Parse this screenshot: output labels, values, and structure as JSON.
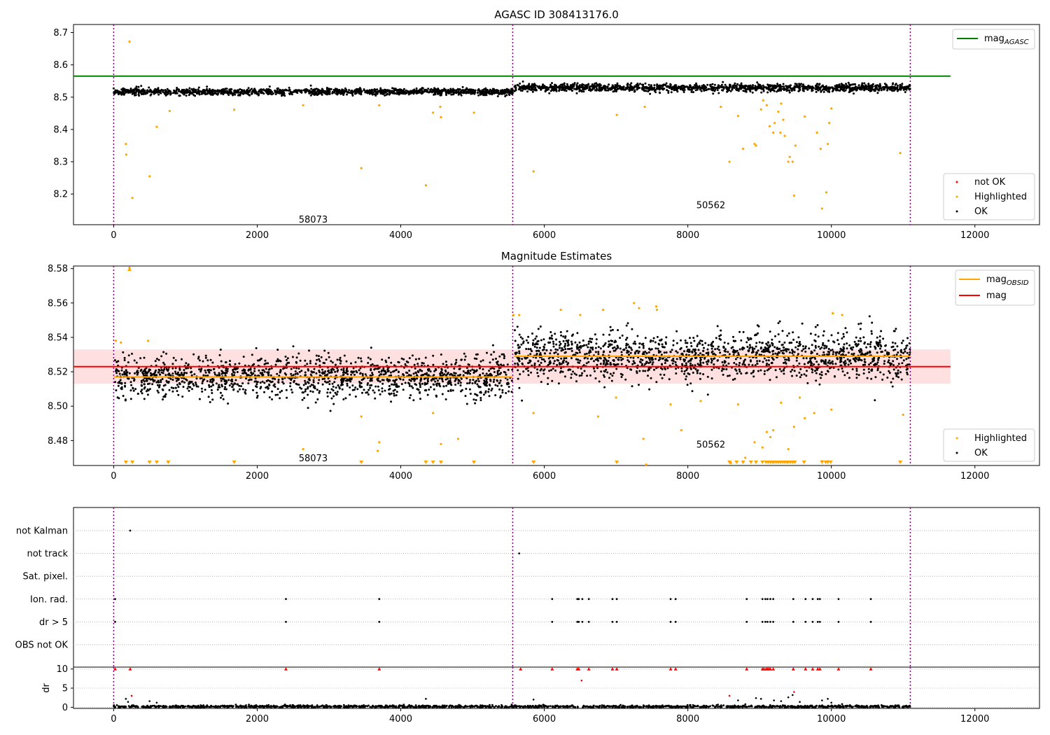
{
  "chart_data": [
    {
      "type": "scatter",
      "title": "AGASC ID 308413176.0",
      "xlim": [
        -560,
        12900
      ],
      "ylim": [
        8.105,
        8.725
      ],
      "x_ticks": [
        0,
        2000,
        4000,
        6000,
        8000,
        10000,
        12000
      ],
      "y_ticks": [
        8.2,
        8.3,
        8.4,
        8.5,
        8.6,
        8.7
      ],
      "reference_lines": [
        {
          "name": "mag_AGASC",
          "y": 8.565,
          "x_range": [
            -560,
            11660
          ],
          "color": "#008000"
        }
      ],
      "obs_boundaries": [
        0,
        5560,
        11100
      ],
      "obs_labels": [
        {
          "text": "58073",
          "x": 2780,
          "y": 8.12
        },
        {
          "text": "50562",
          "x": 8320,
          "y": 8.165
        }
      ],
      "ok_bands": [
        {
          "x": [
            0,
            5560
          ],
          "center": 8.517,
          "spread": 0.012
        },
        {
          "x": [
            5580,
            11100
          ],
          "center": 8.529,
          "spread": 0.014
        }
      ],
      "highlighted_points": [
        {
          "x": 220,
          "y": 8.672
        },
        {
          "x": 170,
          "y": 8.355
        },
        {
          "x": 175,
          "y": 8.322
        },
        {
          "x": 500,
          "y": 8.255
        },
        {
          "x": 260,
          "y": 8.188
        },
        {
          "x": 600,
          "y": 8.408
        },
        {
          "x": 780,
          "y": 8.457
        },
        {
          "x": 1680,
          "y": 8.461
        },
        {
          "x": 2640,
          "y": 8.475
        },
        {
          "x": 3450,
          "y": 8.28
        },
        {
          "x": 3700,
          "y": 8.475
        },
        {
          "x": 4350,
          "y": 8.227
        },
        {
          "x": 4450,
          "y": 8.452
        },
        {
          "x": 4560,
          "y": 8.438
        },
        {
          "x": 4550,
          "y": 8.47
        },
        {
          "x": 5020,
          "y": 8.452
        },
        {
          "x": 5850,
          "y": 8.27
        },
        {
          "x": 7010,
          "y": 8.445
        },
        {
          "x": 7400,
          "y": 8.47
        },
        {
          "x": 8580,
          "y": 8.3
        },
        {
          "x": 8700,
          "y": 8.442
        },
        {
          "x": 8770,
          "y": 8.34
        },
        {
          "x": 8930,
          "y": 8.355
        },
        {
          "x": 8950,
          "y": 8.35
        },
        {
          "x": 9020,
          "y": 8.462
        },
        {
          "x": 9100,
          "y": 8.475
        },
        {
          "x": 9140,
          "y": 8.41
        },
        {
          "x": 9190,
          "y": 8.39
        },
        {
          "x": 9210,
          "y": 8.42
        },
        {
          "x": 9260,
          "y": 8.455
        },
        {
          "x": 9290,
          "y": 8.39
        },
        {
          "x": 9330,
          "y": 8.43
        },
        {
          "x": 9350,
          "y": 8.38
        },
        {
          "x": 9400,
          "y": 8.3
        },
        {
          "x": 9420,
          "y": 8.315
        },
        {
          "x": 9460,
          "y": 8.3
        },
        {
          "x": 9480,
          "y": 8.195
        },
        {
          "x": 9500,
          "y": 8.35
        },
        {
          "x": 9630,
          "y": 8.44
        },
        {
          "x": 9800,
          "y": 8.39
        },
        {
          "x": 9850,
          "y": 8.34
        },
        {
          "x": 9870,
          "y": 8.155
        },
        {
          "x": 9930,
          "y": 8.205
        },
        {
          "x": 9950,
          "y": 8.355
        },
        {
          "x": 9970,
          "y": 8.42
        },
        {
          "x": 10000,
          "y": 8.465
        },
        {
          "x": 10960,
          "y": 8.327
        },
        {
          "x": 9050,
          "y": 8.49
        },
        {
          "x": 9300,
          "y": 8.48
        },
        {
          "x": 8460,
          "y": 8.47
        }
      ],
      "legend": [
        "mag_AGASC",
        "not OK",
        "Highlighted",
        "OK"
      ]
    },
    {
      "type": "scatter",
      "title": "Magnitude Estimates",
      "xlim": [
        -560,
        12900
      ],
      "ylim": [
        8.4655,
        8.5815
      ],
      "x_ticks": [
        0,
        2000,
        4000,
        6000,
        8000,
        10000,
        12000
      ],
      "y_ticks": [
        8.48,
        8.5,
        8.52,
        8.54,
        8.56,
        8.58
      ],
      "obs_boundaries": [
        0,
        5560,
        11100
      ],
      "obs_labels": [
        {
          "text": "58073",
          "x": 2780,
          "y": 8.4695
        },
        {
          "text": "50562",
          "x": 8320,
          "y": 8.4775
        }
      ],
      "mag": {
        "y": 8.523,
        "band": [
          8.513,
          8.533
        ],
        "x_range": [
          -560,
          11660
        ],
        "color": "#ff0000"
      },
      "mag_obsid": [
        {
          "x": [
            0,
            5560
          ],
          "y": 8.517
        },
        {
          "x": [
            5580,
            11100
          ],
          "y": 8.529
        }
      ],
      "ok_bands": [
        {
          "x": [
            0,
            5560
          ],
          "center": 8.517,
          "spread": 0.012
        },
        {
          "x": [
            5580,
            11100
          ],
          "center": 8.529,
          "spread": 0.014
        }
      ],
      "highlighted_points": [
        {
          "x": 220,
          "y": 8.5805
        },
        {
          "x": 30,
          "y": 8.538
        },
        {
          "x": 100,
          "y": 8.537
        },
        {
          "x": 480,
          "y": 8.538
        },
        {
          "x": 2640,
          "y": 8.475
        },
        {
          "x": 3450,
          "y": 8.494
        },
        {
          "x": 3700,
          "y": 8.479
        },
        {
          "x": 3680,
          "y": 8.474
        },
        {
          "x": 4560,
          "y": 8.478
        },
        {
          "x": 4800,
          "y": 8.481
        },
        {
          "x": 4450,
          "y": 8.496
        },
        {
          "x": 5850,
          "y": 8.496
        },
        {
          "x": 5570,
          "y": 8.553
        },
        {
          "x": 5650,
          "y": 8.553
        },
        {
          "x": 6230,
          "y": 8.556
        },
        {
          "x": 6500,
          "y": 8.553
        },
        {
          "x": 6820,
          "y": 8.556
        },
        {
          "x": 7250,
          "y": 8.56
        },
        {
          "x": 7320,
          "y": 8.557
        },
        {
          "x": 7560,
          "y": 8.558
        },
        {
          "x": 7570,
          "y": 8.556
        },
        {
          "x": 6750,
          "y": 8.494
        },
        {
          "x": 7000,
          "y": 8.505
        },
        {
          "x": 7380,
          "y": 8.481
        },
        {
          "x": 7420,
          "y": 8.466
        },
        {
          "x": 7760,
          "y": 8.501
        },
        {
          "x": 7910,
          "y": 8.486
        },
        {
          "x": 8180,
          "y": 8.503
        },
        {
          "x": 8600,
          "y": 8.467
        },
        {
          "x": 8700,
          "y": 8.501
        },
        {
          "x": 8800,
          "y": 8.47
        },
        {
          "x": 8930,
          "y": 8.479
        },
        {
          "x": 9040,
          "y": 8.476
        },
        {
          "x": 9100,
          "y": 8.485
        },
        {
          "x": 9150,
          "y": 8.482
        },
        {
          "x": 9190,
          "y": 8.486
        },
        {
          "x": 9400,
          "y": 8.475
        },
        {
          "x": 9480,
          "y": 8.488
        },
        {
          "x": 9630,
          "y": 8.493
        },
        {
          "x": 9760,
          "y": 8.496
        },
        {
          "x": 9870,
          "y": 8.468
        },
        {
          "x": 9950,
          "y": 8.468
        },
        {
          "x": 10000,
          "y": 8.498
        },
        {
          "x": 10020,
          "y": 8.554
        },
        {
          "x": 10150,
          "y": 8.553
        },
        {
          "x": 11000,
          "y": 8.495
        },
        {
          "x": 9300,
          "y": 8.502
        },
        {
          "x": 9560,
          "y": 8.505
        }
      ],
      "below_range_markers": [
        170,
        260,
        500,
        600,
        760,
        1680,
        3450,
        4350,
        4450,
        4560,
        5020,
        5850,
        7010,
        8580,
        8680,
        8770,
        8880,
        8950,
        9040,
        9090,
        9120,
        9150,
        9180,
        9200,
        9230,
        9260,
        9290,
        9320,
        9350,
        9380,
        9400,
        9430,
        9460,
        9490,
        9620,
        9870,
        9920,
        9950,
        9990,
        10960
      ],
      "legend_top": [
        "mag_OBSID",
        "mag"
      ],
      "legend_bottom": [
        "Highlighted",
        "OK"
      ]
    },
    {
      "type": "scatter",
      "title": "",
      "xlim": [
        -560,
        12900
      ],
      "x_ticks": [
        0,
        2000,
        4000,
        6000,
        8000,
        10000,
        12000
      ],
      "obs_boundaries": [
        0,
        5560,
        11100
      ],
      "flag_categories": [
        "not Kalman",
        "not track",
        "Sat. pixel.",
        "Ion. rad.",
        "dr > 5",
        "OBS not OK"
      ],
      "flags": {
        "not Kalman": [
          230
        ],
        "not track": [
          5650
        ],
        "Sat. pixel.": [],
        "Ion. rad.": [
          20,
          2400,
          3700,
          6110,
          6460,
          6480,
          6530,
          6620,
          6950,
          7010,
          7760,
          7830,
          8820,
          9040,
          9080,
          9110,
          9150,
          9190,
          9470,
          9640,
          9740,
          9810,
          9840,
          10100,
          10550
        ],
        "dr > 5": [
          20,
          2400,
          3700,
          6110,
          6460,
          6480,
          6530,
          6620,
          6950,
          7010,
          7760,
          7830,
          8820,
          9040,
          9080,
          9110,
          9150,
          9190,
          9470,
          9640,
          9740,
          9810,
          9840,
          10100,
          10550
        ],
        "OBS not OK": []
      }
    },
    {
      "type": "scatter",
      "title": "",
      "xlim": [
        -560,
        12900
      ],
      "ylim": [
        -0.3,
        10.5
      ],
      "x_ticks": [
        0,
        2000,
        4000,
        6000,
        8000,
        10000,
        12000
      ],
      "y_ticks": [
        0,
        5,
        10
      ],
      "ylabel": "dr",
      "obs_boundaries": [
        0,
        5560,
        11100
      ],
      "capped_red_markers": [
        20,
        230,
        2400,
        3700,
        5670,
        6110,
        6460,
        6480,
        6620,
        6950,
        7010,
        7760,
        7830,
        8820,
        9040,
        9060,
        9090,
        9110,
        9130,
        9150,
        9190,
        9470,
        9640,
        9740,
        9810,
        9840,
        10100,
        10550
      ],
      "red_points": [
        {
          "x": 6520,
          "y": 7
        },
        {
          "x": 250,
          "y": 3
        },
        {
          "x": 8580,
          "y": 3
        },
        {
          "x": 9480,
          "y": 4
        }
      ],
      "outlier_points": [
        {
          "x": 170,
          "y": 2.2
        },
        {
          "x": 200,
          "y": 1.4
        },
        {
          "x": 500,
          "y": 1.6
        },
        {
          "x": 600,
          "y": 1.2
        },
        {
          "x": 4350,
          "y": 2.2
        },
        {
          "x": 5850,
          "y": 2.0
        },
        {
          "x": 8700,
          "y": 1.8
        },
        {
          "x": 8950,
          "y": 2.4
        },
        {
          "x": 9020,
          "y": 2.2
        },
        {
          "x": 9200,
          "y": 1.8
        },
        {
          "x": 9300,
          "y": 1.6
        },
        {
          "x": 9400,
          "y": 2.6
        },
        {
          "x": 9460,
          "y": 3.2
        },
        {
          "x": 9560,
          "y": 1.4
        },
        {
          "x": 9870,
          "y": 1.8
        },
        {
          "x": 9950,
          "y": 2.2
        },
        {
          "x": 10000,
          "y": 1.2
        }
      ]
    }
  ],
  "colors": {
    "ok": "#000000",
    "highlighted": "#ffa500",
    "not_ok": "#ff0000",
    "mag_agasc": "#008000",
    "mag": "#ff0000",
    "mag_obsid": "#ffa500",
    "obs_boundary": "#800080"
  },
  "legends": {
    "top": {
      "mag_agasc_base": "mag",
      "mag_agasc_sub": "AGASC",
      "not_ok": "not OK",
      "highlighted": "Highlighted",
      "ok": "OK"
    },
    "mid": {
      "mag_obsid_base": "mag",
      "mag_obsid_sub": "OBSID",
      "mag": "mag",
      "highlighted": "Highlighted",
      "ok": "OK"
    }
  }
}
